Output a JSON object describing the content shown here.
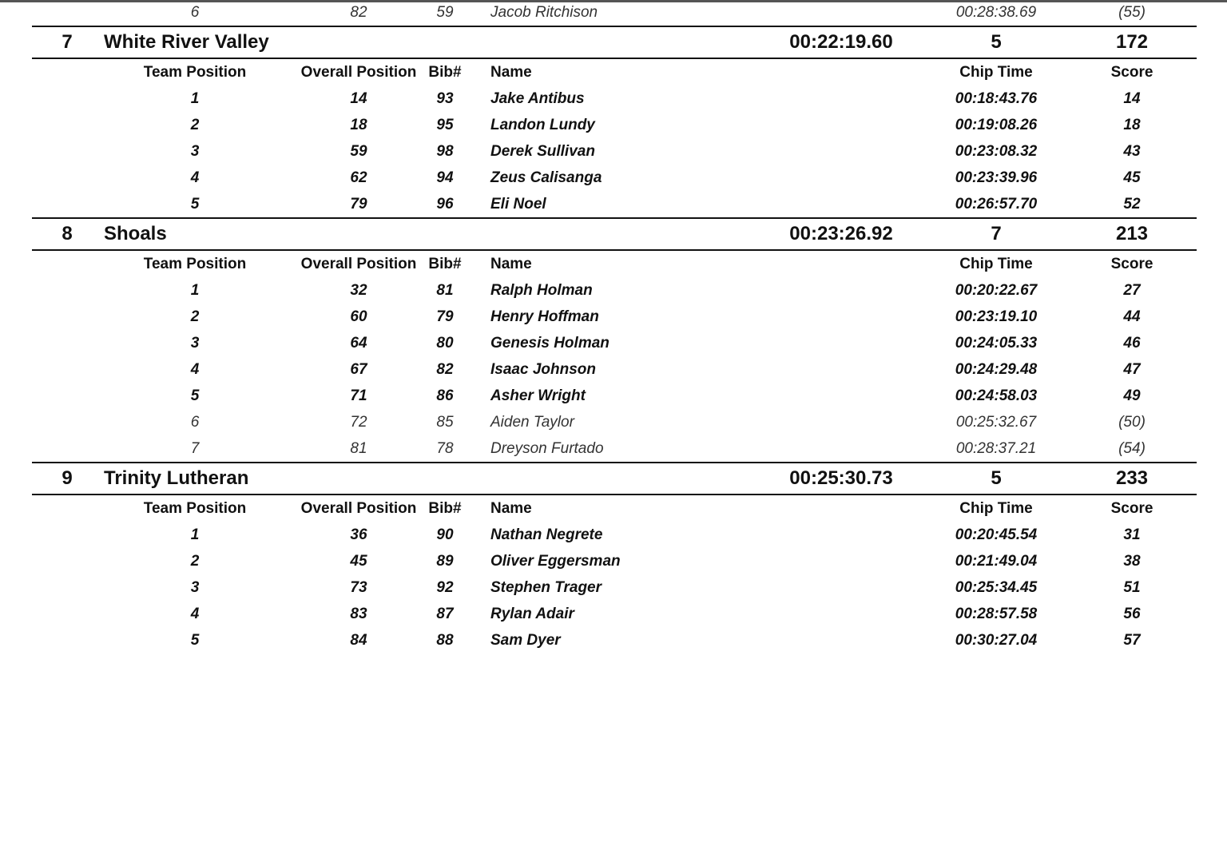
{
  "columns": {
    "team_position": "Team Position",
    "overall_position": "Overall Position",
    "bib": "Bib#",
    "name": "Name",
    "chip_time": "Chip Time",
    "score": "Score"
  },
  "previous_rows": [
    {
      "team_position": "6",
      "overall_position": "82",
      "bib": "59",
      "name": "Jacob Ritchison",
      "chip_time": "00:28:38.69",
      "score": "(55)",
      "scoring": false
    }
  ],
  "teams": [
    {
      "rank": "7",
      "name": "White River Valley",
      "time": "00:22:19.60",
      "count": "5",
      "score": "172",
      "runners": [
        {
          "team_position": "1",
          "overall_position": "14",
          "bib": "93",
          "name": "Jake Antibus",
          "chip_time": "00:18:43.76",
          "score": "14",
          "scoring": true
        },
        {
          "team_position": "2",
          "overall_position": "18",
          "bib": "95",
          "name": "Landon Lundy",
          "chip_time": "00:19:08.26",
          "score": "18",
          "scoring": true
        },
        {
          "team_position": "3",
          "overall_position": "59",
          "bib": "98",
          "name": "Derek Sullivan",
          "chip_time": "00:23:08.32",
          "score": "43",
          "scoring": true
        },
        {
          "team_position": "4",
          "overall_position": "62",
          "bib": "94",
          "name": "Zeus Calisanga",
          "chip_time": "00:23:39.96",
          "score": "45",
          "scoring": true
        },
        {
          "team_position": "5",
          "overall_position": "79",
          "bib": "96",
          "name": "Eli Noel",
          "chip_time": "00:26:57.70",
          "score": "52",
          "scoring": true
        }
      ]
    },
    {
      "rank": "8",
      "name": "Shoals",
      "time": "00:23:26.92",
      "count": "7",
      "score": "213",
      "runners": [
        {
          "team_position": "1",
          "overall_position": "32",
          "bib": "81",
          "name": "Ralph Holman",
          "chip_time": "00:20:22.67",
          "score": "27",
          "scoring": true
        },
        {
          "team_position": "2",
          "overall_position": "60",
          "bib": "79",
          "name": "Henry Hoffman",
          "chip_time": "00:23:19.10",
          "score": "44",
          "scoring": true
        },
        {
          "team_position": "3",
          "overall_position": "64",
          "bib": "80",
          "name": "Genesis Holman",
          "chip_time": "00:24:05.33",
          "score": "46",
          "scoring": true
        },
        {
          "team_position": "4",
          "overall_position": "67",
          "bib": "82",
          "name": "Isaac Johnson",
          "chip_time": "00:24:29.48",
          "score": "47",
          "scoring": true
        },
        {
          "team_position": "5",
          "overall_position": "71",
          "bib": "86",
          "name": "Asher Wright",
          "chip_time": "00:24:58.03",
          "score": "49",
          "scoring": true
        },
        {
          "team_position": "6",
          "overall_position": "72",
          "bib": "85",
          "name": "Aiden Taylor",
          "chip_time": "00:25:32.67",
          "score": "(50)",
          "scoring": false
        },
        {
          "team_position": "7",
          "overall_position": "81",
          "bib": "78",
          "name": "Dreyson Furtado",
          "chip_time": "00:28:37.21",
          "score": "(54)",
          "scoring": false
        }
      ]
    },
    {
      "rank": "9",
      "name": "Trinity Lutheran",
      "time": "00:25:30.73",
      "count": "5",
      "score": "233",
      "runners": [
        {
          "team_position": "1",
          "overall_position": "36",
          "bib": "90",
          "name": "Nathan Negrete",
          "chip_time": "00:20:45.54",
          "score": "31",
          "scoring": true
        },
        {
          "team_position": "2",
          "overall_position": "45",
          "bib": "89",
          "name": "Oliver Eggersman",
          "chip_time": "00:21:49.04",
          "score": "38",
          "scoring": true
        },
        {
          "team_position": "3",
          "overall_position": "73",
          "bib": "92",
          "name": "Stephen Trager",
          "chip_time": "00:25:34.45",
          "score": "51",
          "scoring": true
        },
        {
          "team_position": "4",
          "overall_position": "83",
          "bib": "87",
          "name": "Rylan Adair",
          "chip_time": "00:28:57.58",
          "score": "56",
          "scoring": true
        },
        {
          "team_position": "5",
          "overall_position": "84",
          "bib": "88",
          "name": "Sam Dyer",
          "chip_time": "00:30:27.04",
          "score": "57",
          "scoring": true
        }
      ]
    }
  ]
}
